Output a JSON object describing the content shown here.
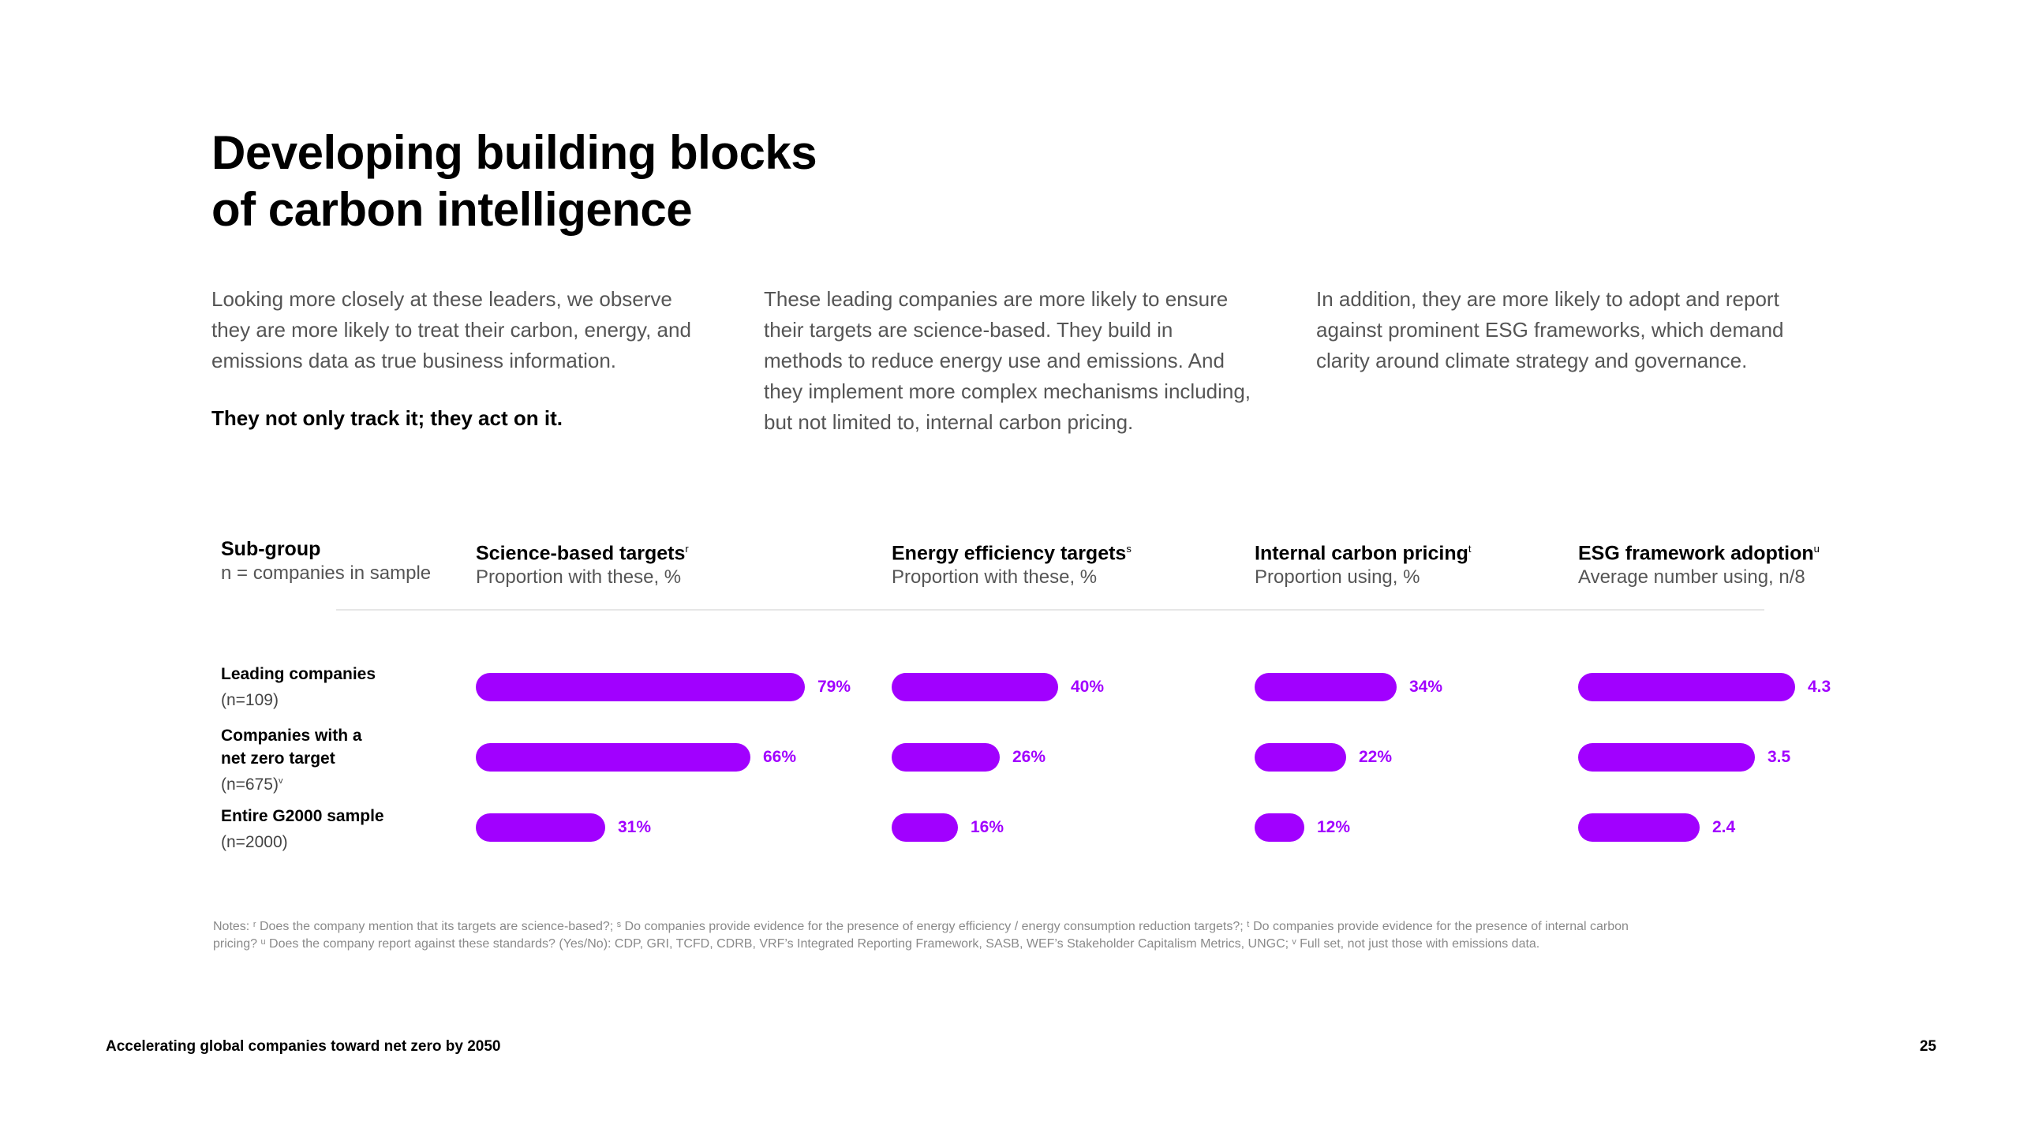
{
  "title": {
    "line1": "Developing building blocks",
    "line2": "of carbon intelligence"
  },
  "intro": {
    "col1_text": "Looking more closely at these leaders, we observe they are more likely to treat their carbon, energy, and emissions data as true business information.",
    "col1_tagline": "They not only track it; they act on it.",
    "col2_text": "These leading companies are more likely to ensure their targets are science-based. They build in methods to reduce energy use and emissions. And they implement more complex mechanisms including, but not limited to, internal carbon pricing.",
    "col3_text": "In addition, they are more likely to adopt and report against prominent ESG frameworks, which demand clarity around climate strategy and governance."
  },
  "chart_data": {
    "type": "bar",
    "orientation": "horizontal",
    "subgroup_header": {
      "title": "Sub-group",
      "subtitle": "n = companies in sample"
    },
    "categories": [
      {
        "name": "Leading companies",
        "n": "(n=109)",
        "sup": ""
      },
      {
        "name": "Companies with a net zero target",
        "n": "(n=675)",
        "sup": "v"
      },
      {
        "name": "Entire G2000 sample",
        "n": "(n=2000)",
        "sup": ""
      }
    ],
    "series": [
      {
        "name": "Science-based targets",
        "sup": "r",
        "subtitle": "Proportion with these, %",
        "values": [
          79,
          66,
          31
        ],
        "labels": [
          "79%",
          "66%",
          "31%"
        ]
      },
      {
        "name": "Energy efficiency targets",
        "sup": "s",
        "subtitle": "Proportion with these, %",
        "values": [
          40,
          26,
          16
        ],
        "labels": [
          "40%",
          "26%",
          "16%"
        ]
      },
      {
        "name": "Internal carbon pricing",
        "sup": "t",
        "subtitle": "Proportion using, %",
        "values": [
          34,
          22,
          12
        ],
        "labels": [
          "34%",
          "22%",
          "12%"
        ]
      },
      {
        "name": "ESG framework adoption",
        "sup": "u",
        "subtitle": "Average number using, n/8",
        "values": [
          4.3,
          3.5,
          2.4
        ],
        "labels": [
          "4.3",
          "3.5",
          "2.4"
        ]
      }
    ],
    "bar_color": "#a100ff"
  },
  "notes": "Notes: ʳ Does the company mention that its targets are science-based?; ˢ Do companies provide evidence for the presence of energy efficiency / energy consumption reduction targets?; ᵗ Do companies provide evidence for the presence of internal carbon pricing? ᵘ Does the company report against these standards? (Yes/No): CDP, GRI, TCFD, CDRB, VRF’s Integrated Reporting Framework, SASB, WEF’s Stakeholder Capitalism Metrics, UNGC; ᵛ Full set, not just those with emissions data.",
  "footer": {
    "left": "Accelerating global companies toward net zero by 2050",
    "page": "25"
  }
}
